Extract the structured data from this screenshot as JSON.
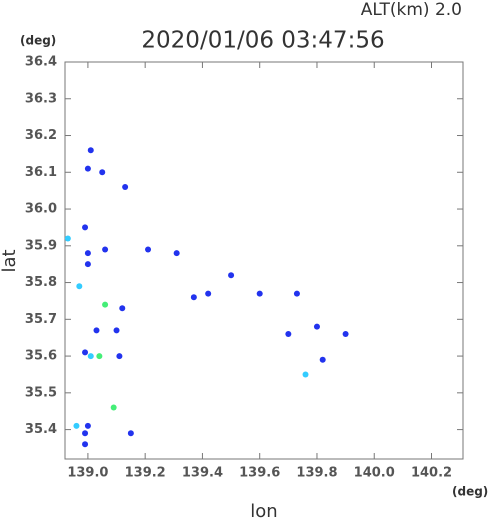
{
  "chart_data": {
    "type": "scatter",
    "title": "2020/01/06 03:47:56",
    "subtitle": "ALT(km)  2.0",
    "x_label": "lon",
    "y_label": "lat",
    "x_unit": "(deg)",
    "y_unit": "(deg)",
    "xlim": [
      138.92,
      140.31
    ],
    "ylim": [
      35.32,
      36.4
    ],
    "xticks": [
      {
        "value": 139.0,
        "label": "139.0"
      },
      139.2,
      139.4,
      139.6,
      139.8,
      {
        "value": 140.0,
        "label": "140.0"
      },
      140.2
    ],
    "yticks": [
      35.4,
      35.5,
      35.6,
      35.7,
      35.8,
      35.9,
      {
        "value": 36.0,
        "label": "36.0"
      },
      36.1,
      36.2,
      36.3,
      36.4
    ],
    "x": [
      139.01,
      139.0,
      139.05,
      139.13,
      138.99,
      138.93,
      139.0,
      139.0,
      138.97,
      139.06,
      139.21,
      139.31,
      139.5,
      139.06,
      139.12,
      139.03,
      139.1,
      138.99,
      139.01,
      139.04,
      139.11,
      139.42,
      139.6,
      139.73,
      139.8,
      139.9,
      139.76,
      139.09,
      138.96,
      139.0,
      138.99,
      139.15,
      138.99,
      139.37,
      139.7,
      139.82
    ],
    "y": [
      36.16,
      36.11,
      36.1,
      36.06,
      35.95,
      35.92,
      35.88,
      35.85,
      35.79,
      35.89,
      35.89,
      35.88,
      35.82,
      35.74,
      35.73,
      35.67,
      35.67,
      35.61,
      35.6,
      35.6,
      35.6,
      35.77,
      35.77,
      35.77,
      35.68,
      35.66,
      35.55,
      35.46,
      35.41,
      35.41,
      35.39,
      35.39,
      35.36,
      35.76,
      35.66,
      35.59
    ],
    "colors": [
      "#2233ee",
      "#2233ee",
      "#2233ee",
      "#2233ee",
      "#2233ee",
      "#33ccff",
      "#2233ee",
      "#2233ee",
      "#33ccff",
      "#2233ee",
      "#2233ee",
      "#2233ee",
      "#2233ee",
      "#44ee77",
      "#2233ee",
      "#2233ee",
      "#2233ee",
      "#2233ee",
      "#33ccff",
      "#44ee77",
      "#2233ee",
      "#2233ee",
      "#2233ee",
      "#2233ee",
      "#2233ee",
      "#2233ee",
      "#33ccff",
      "#44ee77",
      "#33ccff",
      "#2233ee",
      "#2233ee",
      "#2233ee",
      "#2233ee",
      "#2233ee",
      "#2233ee",
      "#2233ee"
    ]
  }
}
